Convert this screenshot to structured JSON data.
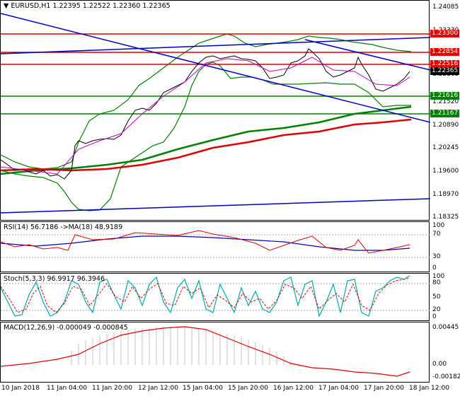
{
  "main": {
    "header_icon": "triangle-down-icon",
    "symbol": "EURUSD,H1",
    "ohlc": "1.22395 1.22522 1.22360 1.22365",
    "ticks": [
      "1.24085",
      "1.23330",
      "1.22575",
      "1.22165",
      "1.21520",
      "1.20890",
      "1.20245",
      "1.19600",
      "1.18970",
      "1.18325"
    ],
    "tags": [
      {
        "label": "1.23300",
        "color": "#e00000"
      },
      {
        "label": "1.22854",
        "color": "#e00000"
      },
      {
        "label": "1.22516",
        "color": "#e00000"
      },
      {
        "label": "1.22365",
        "color": "#000000"
      },
      {
        "label": "1.21616",
        "color": "#008000"
      },
      {
        "label": "1.21167",
        "color": "#008000"
      }
    ]
  },
  "rsi": {
    "title": "RSI(14) 56.7186 ->MA(18) 48.9189",
    "ticks": [
      "100",
      "70",
      "30",
      "0"
    ]
  },
  "stoch": {
    "title": "Stoch(5,3,3) 96.9917 96.3946",
    "ticks": [
      "100",
      "80",
      "50",
      "20",
      "0"
    ]
  },
  "macd": {
    "title": "MACD(12,26,9) -0.000049 -0.000845",
    "ticks": [
      "0.00445",
      "0.00",
      "-0.00182"
    ]
  },
  "xaxis": [
    "10 Jan 2018",
    "11 Jan 04:00",
    "11 Jan 20:00",
    "12 Jan 12:00",
    "15 Jan 04:00",
    "15 Jan 20:00",
    "16 Jan 12:00",
    "17 Jan 04:00",
    "17 Jan 20:00",
    "18 Jan 12:00"
  ],
  "colors": {
    "support": "#008000",
    "resistance": "#e00000",
    "trend": "#0000c0",
    "rsi": "#e00000",
    "rsi_ma": "#0000c0",
    "stoch_main": "#00aaaa",
    "stoch_signal": "#e00000",
    "macd": "#e00000",
    "macd_hist": "#c0c0c0"
  }
}
